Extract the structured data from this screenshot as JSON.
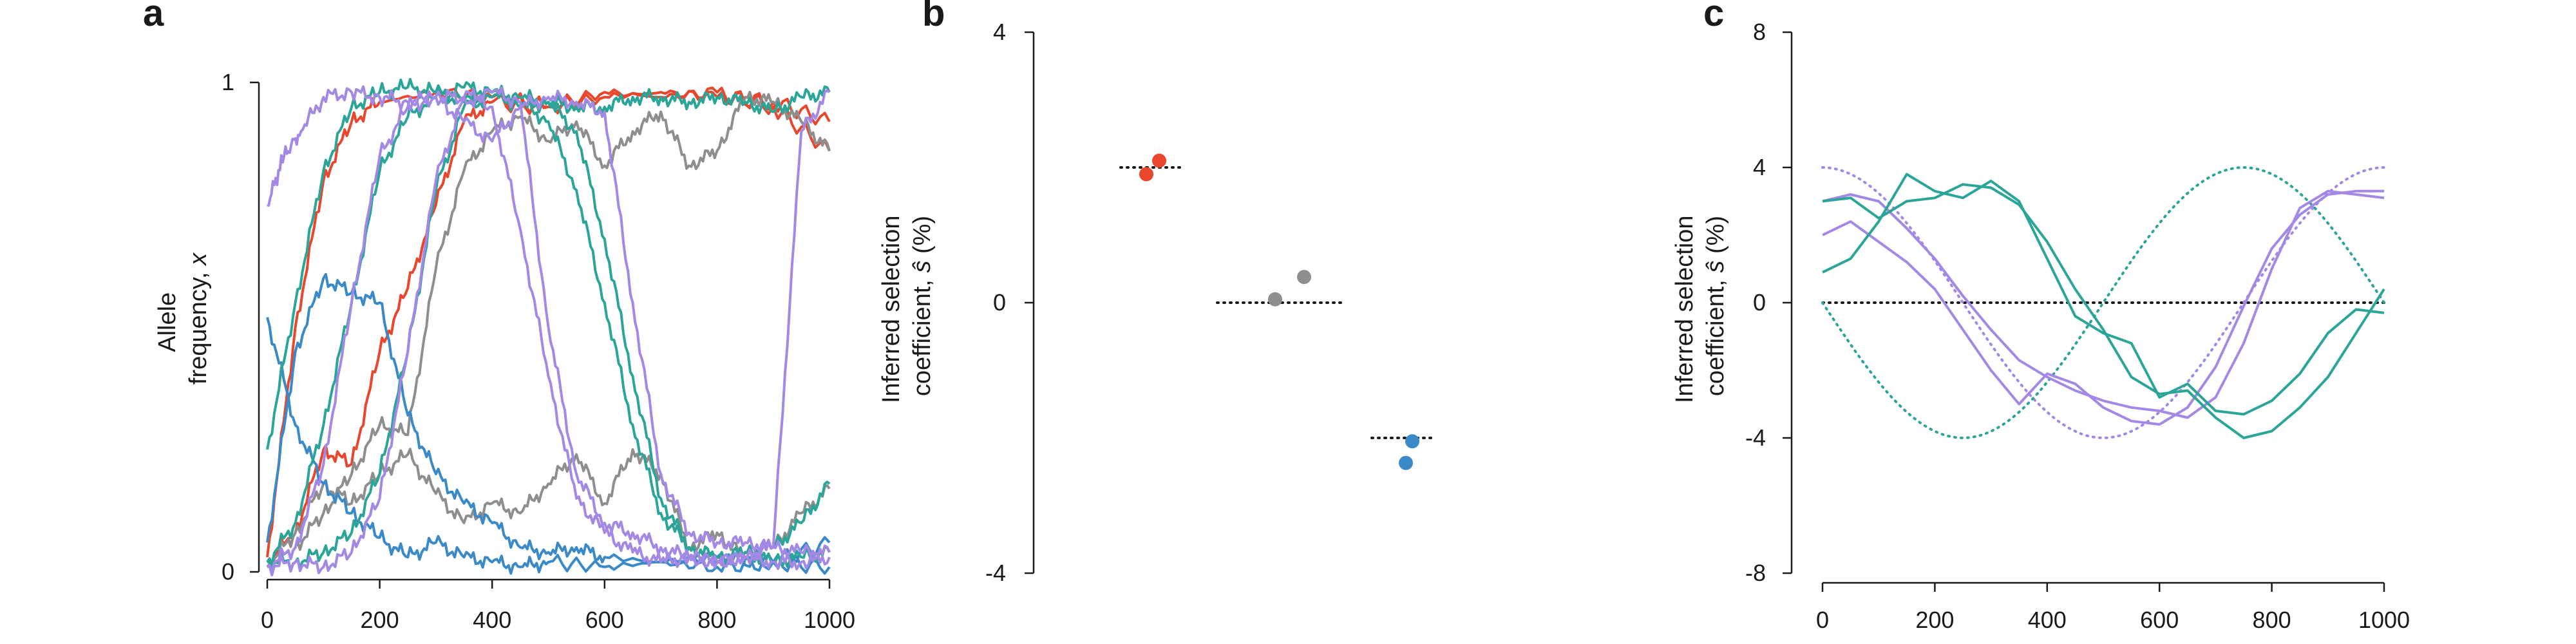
{
  "colors": {
    "red": "#e8462d",
    "gray": "#8e8e8e",
    "blue": "#3a89c9",
    "teal": "#2aa597",
    "purple": "#a488e6",
    "black": "#1a1a1a"
  },
  "chart_data": [
    {
      "panel": "a",
      "type": "line",
      "ylabel": "Allele frequency, x",
      "ylabel_lines": [
        "Allele",
        "frequency, "
      ],
      "ylabel_var": "x",
      "xlim": [
        0,
        1000
      ],
      "ylim": [
        0,
        1
      ],
      "xticks": [
        "0",
        "200",
        "400",
        "600",
        "800",
        "1000"
      ],
      "yticks": [
        "0",
        "1"
      ],
      "series": [
        {
          "color": "red",
          "x": [
            0,
            50,
            100,
            150,
            200,
            250,
            300,
            350,
            400,
            500,
            600,
            700,
            800,
            900,
            1000
          ],
          "y": [
            0.02,
            0.08,
            0.25,
            0.22,
            0.45,
            0.58,
            0.75,
            0.92,
            0.96,
            0.95,
            0.97,
            0.98,
            0.97,
            0.96,
            0.92
          ]
        },
        {
          "color": "red",
          "x": [
            0,
            50,
            100,
            150,
            200,
            300,
            400,
            500,
            600,
            700,
            800,
            900,
            1000
          ],
          "y": [
            0.03,
            0.5,
            0.8,
            0.92,
            0.96,
            0.98,
            0.97,
            0.95,
            0.98,
            0.97,
            0.98,
            0.95,
            0.86
          ]
        },
        {
          "color": "gray",
          "x": [
            0,
            50,
            100,
            150,
            200,
            250,
            300,
            350,
            400,
            450,
            500,
            550,
            600,
            650,
            700,
            750,
            800,
            850,
            900,
            950,
            1000
          ],
          "y": [
            0.01,
            0.05,
            0.12,
            0.2,
            0.3,
            0.28,
            0.62,
            0.82,
            0.9,
            0.93,
            0.88,
            0.92,
            0.83,
            0.9,
            0.94,
            0.83,
            0.86,
            0.97,
            0.96,
            0.92,
            0.86
          ]
        },
        {
          "color": "gray",
          "x": [
            0,
            50,
            100,
            150,
            200,
            250,
            300,
            350,
            400,
            450,
            500,
            550,
            600,
            650,
            700,
            750,
            800,
            850,
            900,
            950,
            1000
          ],
          "y": [
            0.01,
            0.08,
            0.18,
            0.14,
            0.2,
            0.24,
            0.16,
            0.1,
            0.14,
            0.12,
            0.18,
            0.24,
            0.14,
            0.25,
            0.2,
            0.05,
            0.08,
            0.03,
            0.05,
            0.12,
            0.17
          ]
        },
        {
          "color": "blue",
          "x": [
            0,
            50,
            100,
            150,
            200,
            250,
            300,
            350,
            400,
            450,
            500,
            600,
            700,
            800,
            900,
            1000
          ],
          "y": [
            0.52,
            0.3,
            0.18,
            0.12,
            0.07,
            0.03,
            0.06,
            0.03,
            0.02,
            0.01,
            0.02,
            0.01,
            0.02,
            0.01,
            0.02,
            0.01
          ]
        },
        {
          "color": "blue",
          "x": [
            0,
            50,
            100,
            150,
            200,
            250,
            300,
            350,
            400,
            450,
            500,
            550,
            600,
            700,
            800,
            900,
            1000
          ],
          "y": [
            0.06,
            0.45,
            0.6,
            0.57,
            0.55,
            0.32,
            0.2,
            0.14,
            0.1,
            0.05,
            0.04,
            0.05,
            0.03,
            0.02,
            0.03,
            0.02,
            0.06
          ]
        },
        {
          "color": "teal",
          "x": [
            0,
            50,
            100,
            150,
            200,
            250,
            300,
            350,
            400,
            450,
            500,
            550,
            600,
            650,
            700,
            750,
            800,
            850,
            900,
            950,
            1000
          ],
          "y": [
            0.25,
            0.55,
            0.82,
            0.95,
            0.98,
            0.99,
            0.98,
            0.96,
            0.98,
            0.95,
            0.96,
            0.9,
            0.68,
            0.4,
            0.15,
            0.05,
            0.03,
            0.04,
            0.02,
            0.03,
            0.04
          ]
        },
        {
          "color": "teal",
          "x": [
            0,
            50,
            100,
            150,
            200,
            250,
            300,
            350,
            400,
            450,
            500,
            550,
            600,
            650,
            700,
            750,
            800,
            850,
            900,
            950,
            1000
          ],
          "y": [
            0.02,
            0.1,
            0.3,
            0.55,
            0.82,
            0.93,
            0.97,
            0.99,
            0.98,
            0.97,
            0.96,
            0.95,
            0.95,
            0.97,
            0.97,
            0.96,
            0.97,
            0.96,
            0.94,
            0.97,
            0.98
          ]
        },
        {
          "color": "teal",
          "x": [
            0,
            50,
            100,
            150,
            200,
            250,
            300,
            350,
            400,
            450,
            500,
            550,
            600,
            650,
            700,
            750,
            800,
            850,
            900,
            950,
            1000
          ],
          "y": [
            0.02,
            0.02,
            0.04,
            0.08,
            0.2,
            0.45,
            0.78,
            0.95,
            0.97,
            0.96,
            0.92,
            0.78,
            0.55,
            0.3,
            0.12,
            0.05,
            0.03,
            0.04,
            0.05,
            0.1,
            0.18
          ]
        },
        {
          "color": "purple",
          "x": [
            0,
            30,
            60,
            100,
            150,
            200,
            250,
            300,
            350,
            400,
            450,
            500,
            550,
            600,
            650,
            700,
            750,
            800,
            850,
            900,
            950,
            1000
          ],
          "y": [
            0.75,
            0.85,
            0.9,
            0.97,
            0.98,
            0.97,
            0.96,
            0.97,
            0.97,
            0.95,
            0.7,
            0.4,
            0.15,
            0.08,
            0.04,
            0.02,
            0.03,
            0.02,
            0.03,
            0.02,
            0.02,
            0.03
          ]
        },
        {
          "color": "purple",
          "x": [
            0,
            50,
            100,
            150,
            200,
            250,
            300,
            350,
            400,
            450,
            500,
            550,
            600,
            650,
            700,
            750,
            800,
            850,
            900,
            950,
            1000
          ],
          "y": [
            0.01,
            0.05,
            0.22,
            0.55,
            0.85,
            0.95,
            0.97,
            0.92,
            0.88,
            0.95,
            0.97,
            0.96,
            0.94,
            0.55,
            0.2,
            0.08,
            0.06,
            0.06,
            0.05,
            0.04,
            0.04
          ]
        },
        {
          "color": "purple",
          "x": [
            0,
            50,
            100,
            150,
            200,
            250,
            300,
            350,
            400,
            450,
            500,
            550,
            600,
            650,
            700,
            750,
            800,
            850,
            900,
            950,
            1000
          ],
          "y": [
            0.01,
            0.02,
            0.01,
            0.04,
            0.15,
            0.45,
            0.8,
            0.97,
            0.98,
            0.96,
            0.5,
            0.2,
            0.1,
            0.08,
            0.05,
            0.03,
            0.02,
            0.03,
            0.05,
            0.9,
            0.98
          ]
        }
      ]
    },
    {
      "panel": "b",
      "type": "scatter",
      "ylabel": "Inferred selection coefficient, ŝ (%)",
      "ylabel_line1": "Inferred selection",
      "ylabel_line2_pre": "coefficient, ",
      "ylabel_var": "ŝ",
      "ylabel_post": " (%)",
      "ylim": [
        -4,
        4
      ],
      "yticks": [
        "4",
        "0",
        "-4"
      ],
      "reference_lines": [
        {
          "color": "black",
          "x": [
            0.0,
            1.0
          ],
          "y": 2
        },
        {
          "color": "black",
          "x": [
            1.5,
            3.5
          ],
          "y": 0
        },
        {
          "color": "black",
          "x": [
            3.9,
            4.9
          ],
          "y": -2
        }
      ],
      "points": [
        {
          "color": "red",
          "x": 0.4,
          "y": 1.9
        },
        {
          "color": "red",
          "x": 0.6,
          "y": 2.1
        },
        {
          "color": "gray",
          "x": 2.4,
          "y": 0.05
        },
        {
          "color": "gray",
          "x": 2.85,
          "y": 0.38
        },
        {
          "color": "blue",
          "x": 4.43,
          "y": -2.37
        },
        {
          "color": "blue",
          "x": 4.53,
          "y": -2.05
        }
      ]
    },
    {
      "panel": "c",
      "type": "line",
      "ylabel": "Inferred selection coefficient, ŝ (%)",
      "ylabel_line1": "Inferred selection",
      "ylabel_line2_pre": "coefficient, ",
      "ylabel_var": "ŝ",
      "ylabel_post": " (%)",
      "xlim": [
        0,
        1000
      ],
      "ylim": [
        -8,
        8
      ],
      "xticks": [
        "0",
        "200",
        "400",
        "600",
        "800",
        "1000"
      ],
      "yticks": [
        "8",
        "4",
        "0",
        "-4",
        "-8"
      ],
      "zero_line": {
        "color": "black",
        "y": 0
      },
      "true_curves": [
        {
          "color": "purple",
          "form": "4*cos(2*pi*x/1000)"
        },
        {
          "color": "teal",
          "form": "-4*cos(2*pi*(x-250)/1000)"
        }
      ],
      "series": [
        {
          "color": "purple",
          "x": [
            0,
            50,
            100,
            150,
            200,
            250,
            300,
            350,
            400,
            450,
            500,
            550,
            600,
            650,
            700,
            750,
            800,
            850,
            900,
            950,
            1000
          ],
          "y": [
            3.0,
            3.2,
            3.0,
            2.2,
            1.3,
            0.2,
            -0.8,
            -1.7,
            -2.2,
            -2.6,
            -2.9,
            -3.1,
            -3.2,
            -3.4,
            -2.8,
            -1.2,
            1.0,
            2.8,
            3.3,
            3.2,
            3.1
          ]
        },
        {
          "color": "purple",
          "x": [
            0,
            50,
            100,
            150,
            200,
            250,
            300,
            350,
            400,
            450,
            500,
            550,
            600,
            650,
            700,
            750,
            800,
            850,
            900,
            950,
            1000
          ],
          "y": [
            2.0,
            2.4,
            1.8,
            1.2,
            0.4,
            -0.8,
            -2.0,
            -3.0,
            -2.1,
            -2.4,
            -3.1,
            -3.5,
            -3.6,
            -3.1,
            -1.9,
            -0.1,
            1.6,
            2.6,
            3.2,
            3.3,
            3.3
          ]
        },
        {
          "color": "teal",
          "x": [
            0,
            50,
            100,
            150,
            200,
            250,
            300,
            350,
            400,
            450,
            500,
            550,
            600,
            650,
            700,
            750,
            800,
            850,
            900,
            950,
            1000
          ],
          "y": [
            0.9,
            1.3,
            2.4,
            3.8,
            3.3,
            3.1,
            3.6,
            3.0,
            1.3,
            -0.4,
            -0.9,
            -1.2,
            -2.8,
            -2.4,
            -3.2,
            -3.3,
            -2.9,
            -2.1,
            -0.9,
            -0.2,
            -0.3
          ]
        },
        {
          "color": "teal",
          "x": [
            0,
            50,
            100,
            150,
            200,
            250,
            300,
            350,
            400,
            450,
            500,
            550,
            600,
            650,
            700,
            750,
            800,
            850,
            900,
            950,
            1000
          ],
          "y": [
            3.0,
            3.1,
            2.5,
            3.0,
            3.1,
            3.5,
            3.4,
            2.9,
            1.8,
            0.4,
            -0.8,
            -2.2,
            -2.7,
            -2.6,
            -3.4,
            -4.0,
            -3.8,
            -3.1,
            -2.2,
            -0.9,
            0.4
          ]
        }
      ]
    }
  ]
}
